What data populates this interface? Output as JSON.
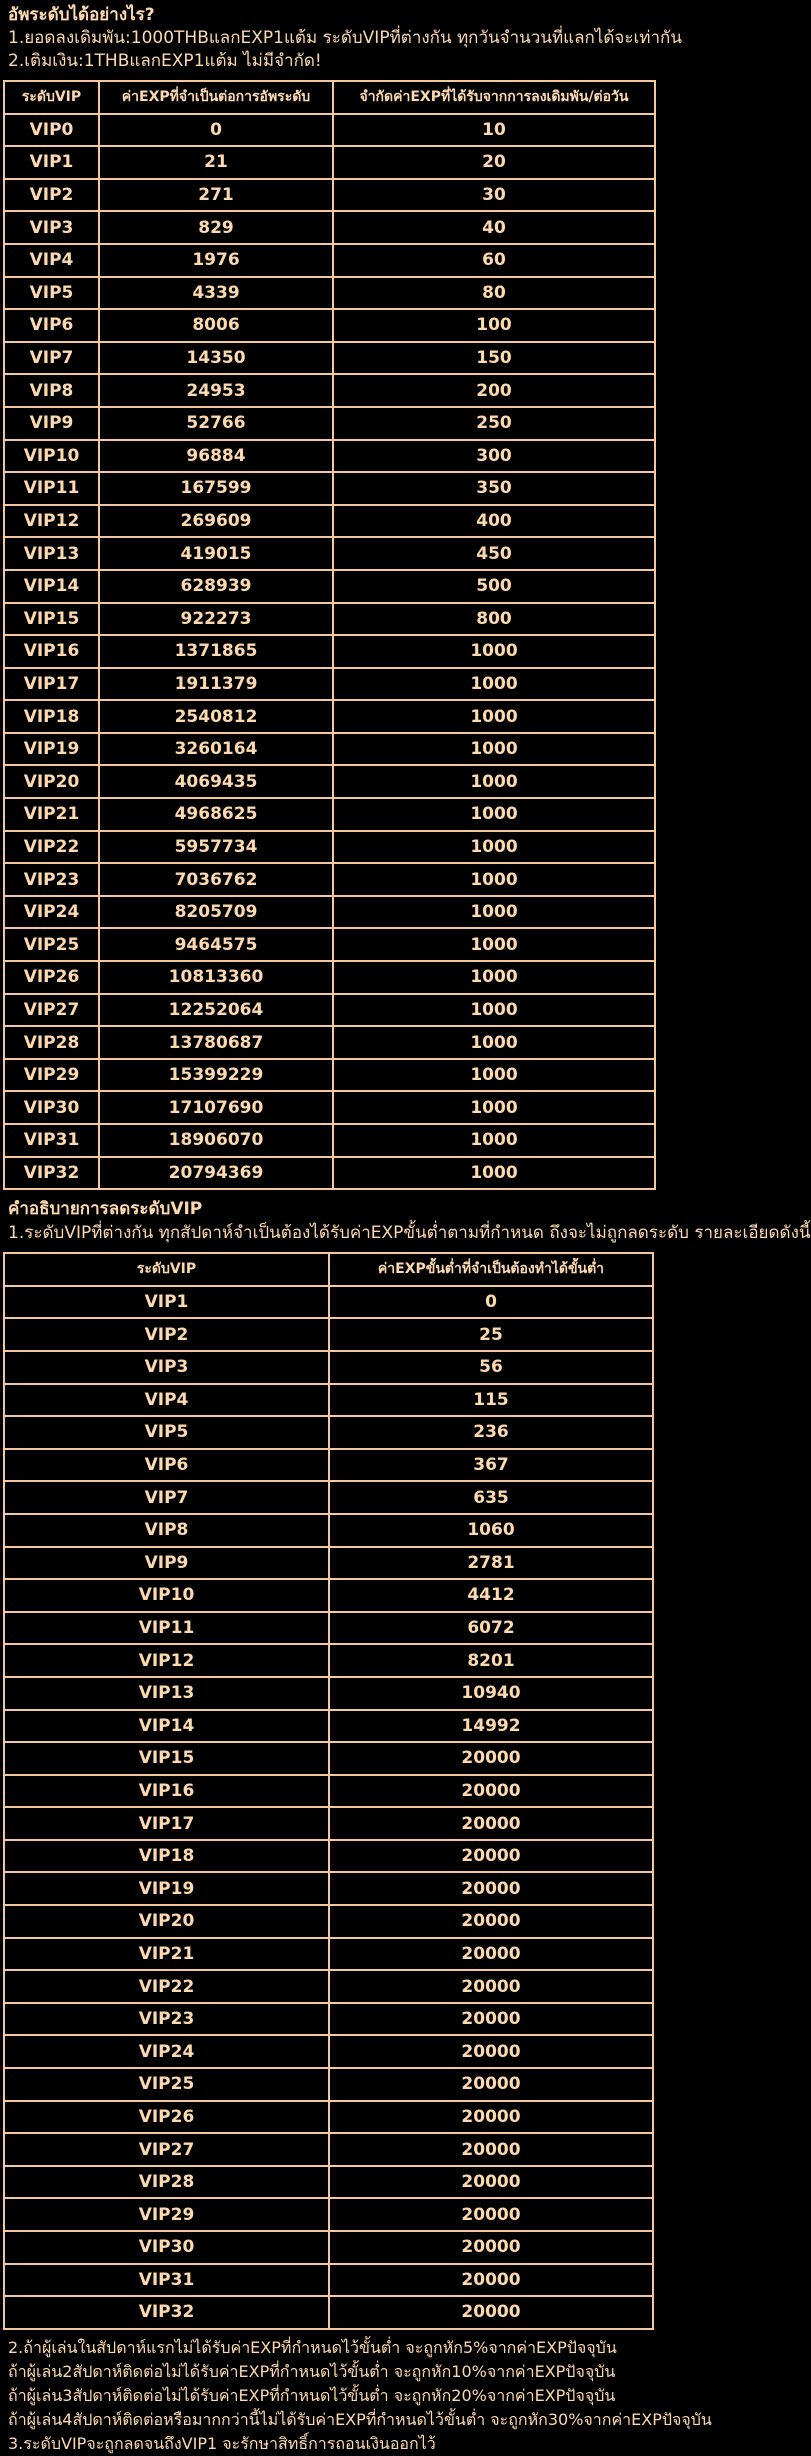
{
  "page": {
    "background_color": "#000000",
    "text_color": "#FCD9AE",
    "border_color": "#F5C79D"
  },
  "intro": {
    "title": "อัพระดับได้อย่างไร?",
    "line1": "1.ยอดลงเดิมพัน:1000THBแลกEXP1แต้ม ระดับVIPที่ต่างกัน ทุกวันจำนวนที่แลกได้จะเท่ากัน",
    "line2": "2.เติมเงิน:1THBแลกEXP1แต้ม ไม่มีจำกัด!"
  },
  "upgrade_table": {
    "headers": [
      "ระดับVIP",
      "ค่าEXPที่จำเป็นต่อการอัพระดับ",
      "จำกัดค่าEXPที่ได้รับจากการลงเดิมพัน/ต่อวัน"
    ],
    "rows": [
      [
        "VIP0",
        "0",
        "10"
      ],
      [
        "VIP1",
        "21",
        "20"
      ],
      [
        "VIP2",
        "271",
        "30"
      ],
      [
        "VIP3",
        "829",
        "40"
      ],
      [
        "VIP4",
        "1976",
        "60"
      ],
      [
        "VIP5",
        "4339",
        "80"
      ],
      [
        "VIP6",
        "8006",
        "100"
      ],
      [
        "VIP7",
        "14350",
        "150"
      ],
      [
        "VIP8",
        "24953",
        "200"
      ],
      [
        "VIP9",
        "52766",
        "250"
      ],
      [
        "VIP10",
        "96884",
        "300"
      ],
      [
        "VIP11",
        "167599",
        "350"
      ],
      [
        "VIP12",
        "269609",
        "400"
      ],
      [
        "VIP13",
        "419015",
        "450"
      ],
      [
        "VIP14",
        "628939",
        "500"
      ],
      [
        "VIP15",
        "922273",
        "800"
      ],
      [
        "VIP16",
        "1371865",
        "1000"
      ],
      [
        "VIP17",
        "1911379",
        "1000"
      ],
      [
        "VIP18",
        "2540812",
        "1000"
      ],
      [
        "VIP19",
        "3260164",
        "1000"
      ],
      [
        "VIP20",
        "4069435",
        "1000"
      ],
      [
        "VIP21",
        "4968625",
        "1000"
      ],
      [
        "VIP22",
        "5957734",
        "1000"
      ],
      [
        "VIP23",
        "7036762",
        "1000"
      ],
      [
        "VIP24",
        "8205709",
        "1000"
      ],
      [
        "VIP25",
        "9464575",
        "1000"
      ],
      [
        "VIP26",
        "10813360",
        "1000"
      ],
      [
        "VIP27",
        "12252064",
        "1000"
      ],
      [
        "VIP28",
        "13780687",
        "1000"
      ],
      [
        "VIP29",
        "15399229",
        "1000"
      ],
      [
        "VIP30",
        "17107690",
        "1000"
      ],
      [
        "VIP31",
        "18906070",
        "1000"
      ],
      [
        "VIP32",
        "20794369",
        "1000"
      ]
    ]
  },
  "downgrade": {
    "title": "คำอธิบายการลดระดับVIP",
    "line1": "1.ระดับVIPที่ต่างกัน ทุกสัปดาห์จำเป็นต้องได้รับค่าEXPขั้นต่ำตามที่กำหนด ถึงจะไม่ถูกลดระดับ รายละเอียดดังนี้"
  },
  "downgrade_table": {
    "headers": [
      "ระดับVIP",
      "ค่าEXPขั้นต่ำที่จำเป็นต้องทำได้ขั้นต่ำ"
    ],
    "rows": [
      [
        "VIP1",
        "0"
      ],
      [
        "VIP2",
        "25"
      ],
      [
        "VIP3",
        "56"
      ],
      [
        "VIP4",
        "115"
      ],
      [
        "VIP5",
        "236"
      ],
      [
        "VIP6",
        "367"
      ],
      [
        "VIP7",
        "635"
      ],
      [
        "VIP8",
        "1060"
      ],
      [
        "VIP9",
        "2781"
      ],
      [
        "VIP10",
        "4412"
      ],
      [
        "VIP11",
        "6072"
      ],
      [
        "VIP12",
        "8201"
      ],
      [
        "VIP13",
        "10940"
      ],
      [
        "VIP14",
        "14992"
      ],
      [
        "VIP15",
        "20000"
      ],
      [
        "VIP16",
        "20000"
      ],
      [
        "VIP17",
        "20000"
      ],
      [
        "VIP18",
        "20000"
      ],
      [
        "VIP19",
        "20000"
      ],
      [
        "VIP20",
        "20000"
      ],
      [
        "VIP21",
        "20000"
      ],
      [
        "VIP22",
        "20000"
      ],
      [
        "VIP23",
        "20000"
      ],
      [
        "VIP24",
        "20000"
      ],
      [
        "VIP25",
        "20000"
      ],
      [
        "VIP26",
        "20000"
      ],
      [
        "VIP27",
        "20000"
      ],
      [
        "VIP28",
        "20000"
      ],
      [
        "VIP29",
        "20000"
      ],
      [
        "VIP30",
        "20000"
      ],
      [
        "VIP31",
        "20000"
      ],
      [
        "VIP32",
        "20000"
      ]
    ]
  },
  "footer": {
    "lines": [
      "2.ถ้าผู้เล่นในสัปดาห์แรกไม่ได้รับค่าEXPที่กำหนดไว้ขั้นต่ำ จะถูกหัก5%จากค่าEXPปัจจุบัน",
      "ถ้าผู้เล่น2สัปดาห์ติดต่อไม่ได้รับค่าEXPที่กำหนดไว้ขั้นต่ำ จะถูกหัก10%จากค่าEXPปัจจุบัน",
      "ถ้าผู้เล่น3สัปดาห์ติดต่อไม่ได้รับค่าEXPที่กำหนดไว้ขั้นต่ำ จะถูกหัก20%จากค่าEXPปัจจุบัน",
      "ถ้าผู้เล่น4สัปดาห์ติดต่อหรือมากกว่านี้ไม่ได้รับค่าEXPที่กำหนดไว้ขั้นต่ำ จะถูกหัก30%จากค่าEXPปัจจุบัน",
      "3.ระดับVIPจะถูกลดจนถึงVIP1 จะรักษาสิทธิ์การถอนเงินออกไว้"
    ]
  }
}
